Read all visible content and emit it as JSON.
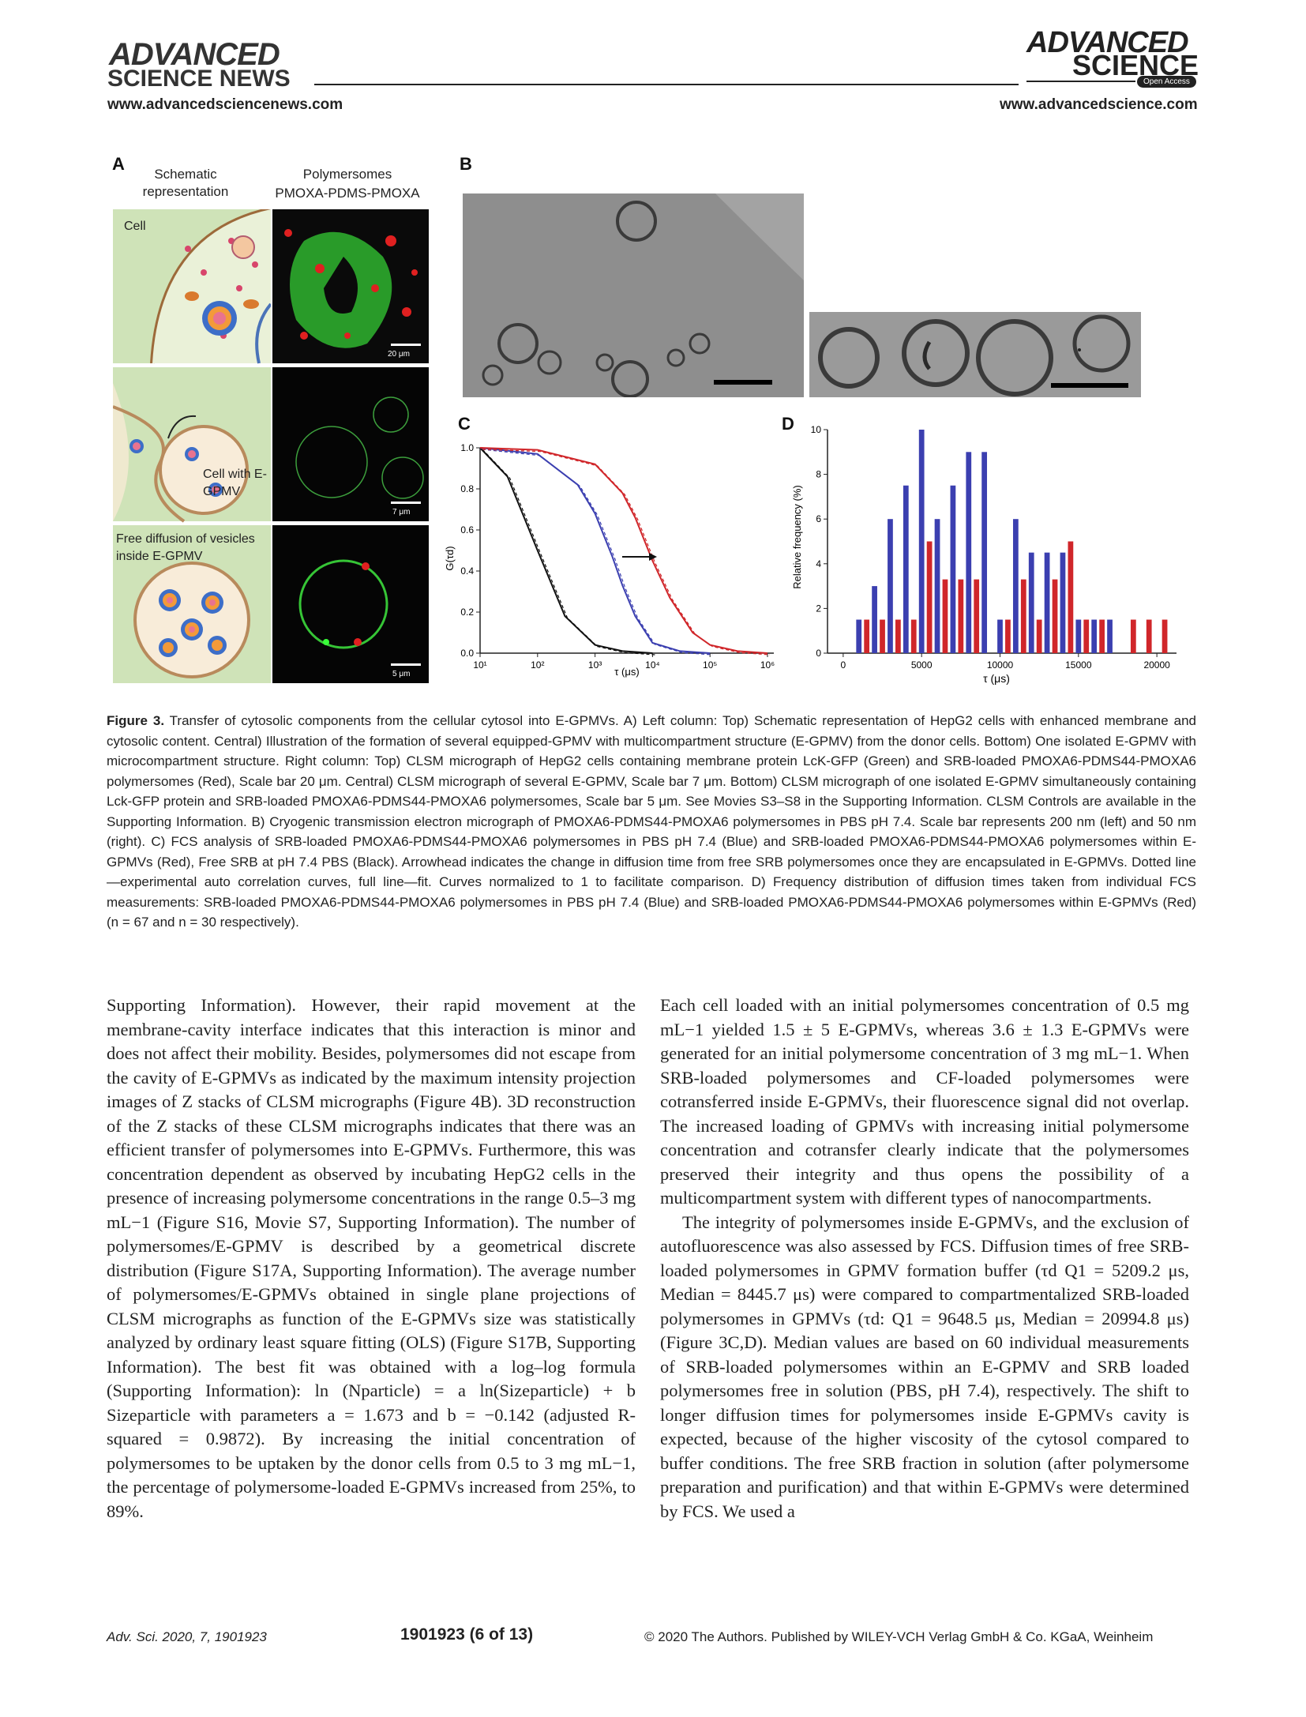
{
  "header": {
    "left_logo_line1": "ADVANCED",
    "left_logo_line2": "SCIENCE NEWS",
    "left_url": "www.advancedsciencenews.com",
    "right_logo_line1": "ADVANCED",
    "right_logo_line2": "SCIENCE",
    "right_badge": "Open Access",
    "right_url": "www.advancedscience.com"
  },
  "figure": {
    "panel_a": {
      "letter": "A",
      "col1_header": "Schematic representation",
      "col2_header_line1": "Polymersomes",
      "col2_header_line2": "PMOXA-PDMS-PMOXA",
      "row1_label": "Cell",
      "row2_label": "Cell with E-GPMV",
      "row3_label": "Free diffusion of vesicles inside E-GPMV",
      "scale1": "20 μm",
      "scale2": "7 μm",
      "scale3": "5 μm"
    },
    "panel_b": {
      "letter": "B"
    },
    "panel_c": {
      "letter": "C",
      "y_label": "G(τd)",
      "x_label": "τ (μs)",
      "y_ticks": [
        "1.0",
        "0.8",
        "0.6",
        "0.4",
        "0.2",
        "0.0"
      ],
      "x_ticks": [
        "10¹",
        "10²",
        "10³",
        "10⁴",
        "10⁵",
        "10⁶"
      ]
    },
    "panel_d": {
      "letter": "D",
      "y_label": "Relative frequency (%)",
      "x_label": "τ (μs)",
      "y_ticks": [
        "10",
        "8",
        "6",
        "4",
        "2",
        "0"
      ],
      "x_ticks": [
        "0",
        "5000",
        "10000",
        "15000",
        "20000"
      ]
    }
  },
  "chart_data": [
    {
      "type": "line",
      "panel": "C",
      "xscale": "log",
      "xlim": [
        10,
        1000000
      ],
      "ylim": [
        0,
        1.0
      ],
      "xlabel": "τ (μs)",
      "ylabel": "G(τd)",
      "series": [
        {
          "color": "#111111",
          "x": [
            10,
            30,
            100,
            300,
            1000,
            3000,
            10000
          ],
          "y": [
            1.0,
            0.86,
            0.5,
            0.18,
            0.04,
            0.01,
            0.0
          ]
        },
        {
          "color": "#3b3fb0",
          "x": [
            10,
            100,
            500,
            1000,
            2000,
            3000,
            5000,
            10000,
            30000,
            100000
          ],
          "y": [
            1.0,
            0.97,
            0.82,
            0.68,
            0.47,
            0.33,
            0.18,
            0.05,
            0.01,
            0.0
          ]
        },
        {
          "color": "#d0262a",
          "x": [
            10,
            100,
            1000,
            3000,
            5000,
            10000,
            20000,
            50000,
            100000,
            300000,
            1000000
          ],
          "y": [
            1.0,
            0.99,
            0.92,
            0.78,
            0.66,
            0.45,
            0.27,
            0.1,
            0.04,
            0.01,
            0.0
          ]
        }
      ]
    },
    {
      "type": "bar",
      "panel": "D",
      "xlabel": "τ (μs)",
      "ylabel": "Relative frequency (%)",
      "xlim": [
        -1000,
        21000
      ],
      "ylim": [
        0,
        10
      ],
      "bin_width_data": 500,
      "series": [
        {
          "color": "#3b3fb0",
          "x": [
            1000,
            2000,
            3000,
            4000,
            5000,
            6000,
            7000,
            8000,
            9000,
            10000,
            11000,
            12000,
            13000,
            14000,
            15000,
            16000,
            17000
          ],
          "values": [
            1.5,
            3.0,
            6.0,
            7.5,
            10.0,
            6.0,
            7.5,
            9.0,
            9.0,
            1.5,
            6.0,
            4.5,
            4.5,
            4.5,
            1.5,
            1.5,
            1.5
          ]
        },
        {
          "color": "#d0262a",
          "x": [
            1500,
            2500,
            3500,
            4500,
            5500,
            6500,
            7500,
            8500,
            10500,
            11500,
            12500,
            13500,
            14500,
            15500,
            16500,
            18500,
            19500,
            20500
          ],
          "values": [
            1.5,
            1.5,
            1.5,
            1.5,
            5.0,
            3.3,
            3.3,
            3.3,
            1.5,
            3.3,
            1.5,
            3.3,
            5.0,
            1.5,
            1.5,
            1.5,
            1.5,
            1.5
          ]
        }
      ]
    }
  ],
  "caption": {
    "label": "Figure 3.",
    "text": "Transfer of cytosolic components from the cellular cytosol into E-GPMVs. A) Left column: Top) Schematic representation of HepG2 cells with enhanced membrane and cytosolic content. Central) Illustration of the formation of several equipped-GPMV with multicompartment structure (E-GPMV) from the donor cells. Bottom) One isolated E-GPMV with microcompartment structure. Right column: Top) CLSM micrograph of HepG2 cells containing membrane protein LcK-GFP (Green) and SRB-loaded PMOXA6-PDMS44-PMOXA6 polymersomes (Red), Scale bar 20 μm. Central) CLSM micrograph of several E-GPMV, Scale bar 7 μm. Bottom) CLSM micrograph of one isolated E-GPMV simultaneously containing Lck-GFP protein and SRB-loaded PMOXA6-PDMS44-PMOXA6 polymersomes, Scale bar 5 μm. See Movies S3–S8 in the Supporting Information. CLSM Controls are available in the Supporting Information. B) Cryogenic transmission electron micrograph of PMOXA6-PDMS44-PMOXA6 polymersomes in PBS pH 7.4. Scale bar represents 200 nm (left) and 50 nm (right). C) FCS analysis of SRB-loaded PMOXA6-PDMS44-PMOXA6 polymersomes in PBS pH 7.4 (Blue) and SRB-loaded PMOXA6-PDMS44-PMOXA6 polymersomes within E-GPMVs (Red), Free SRB at pH 7.4 PBS (Black). Arrowhead indicates the change in diffusion time from free SRB polymersomes once they are encapsulated in E-GPMVs. Dotted line—experimental auto correlation curves, full line—fit. Curves normalized to 1 to facilitate comparison. D) Frequency distribution of diffusion times taken from individual FCS measurements: SRB-loaded PMOXA6-PDMS44-PMOXA6 polymersomes in PBS pH 7.4 (Blue) and SRB-loaded PMOXA6-PDMS44-PMOXA6 polymersomes within E-GPMVs (Red) (n = 67 and n = 30 respectively)."
  },
  "body": {
    "left_column": "Supporting Information). However, their rapid movement at the membrane-cavity interface indicates that this interaction is minor and does not affect their mobility. Besides, polymersomes did not escape from the cavity of E-GPMVs as indicated by the maximum intensity projection images of Z stacks of CLSM micrographs (Figure 4B). 3D reconstruction of the Z stacks of these CLSM micrographs indicates that there was an efficient transfer of polymersomes into E-GPMVs. Furthermore, this was concentration dependent as observed by incubating HepG2 cells in the presence of increasing polymersome concentrations in the range 0.5–3 mg mL−1 (Figure S16, Movie S7, Supporting Information). The number of polymersomes/E-GPMV is described by a geometrical discrete distribution (Figure S17A, Supporting Information). The average number of polymersomes/E-GPMVs obtained in single plane projections of CLSM micrographs as function of the E-GPMVs size was statistically analyzed by ordinary least square fitting (OLS) (Figure S17B, Supporting Information). The best fit was obtained with a log–log formula (Supporting Information): ln (Nparticle) = a ln(Sizeparticle) + b Sizeparticle with parameters a = 1.673 and b = −0.142 (adjusted R-squared = 0.9872). By increasing the initial concentration of polymersomes to be uptaken by the donor cells from 0.5 to 3 mg mL−1, the percentage of polymersome-loaded E-GPMVs increased from 25%, to 89%.",
    "right_para1": "Each cell loaded with an initial polymersomes concentration of 0.5 mg mL−1 yielded 1.5 ± 5 E-GPMVs, whereas 3.6 ± 1.3 E-GPMVs were generated for an initial polymersome concentration of 3 mg mL−1. When SRB-loaded polymersomes and CF-loaded polymersomes were cotransferred inside E-GPMVs, their fluorescence signal did not overlap. The increased loading of GPMVs with increasing initial polymersome concentration and cotransfer clearly indicate that the polymersomes preserved their integrity and thus opens the possibility of a multicompartment system with different types of nanocompartments.",
    "right_para2": "The integrity of polymersomes inside E-GPMVs, and the exclusion of autofluorescence was also assessed by FCS. Diffusion times of free SRB-loaded polymersomes in GPMV formation buffer (τd Q1 = 5209.2 μs, Median = 8445.7 μs) were compared to compartmentalized SRB-loaded polymersomes in GPMVs (τd: Q1 = 9648.5 μs, Median = 20994.8 μs) (Figure 3C,D). Median values are based on 60 individual measurements of SRB-loaded polymersomes within an E-GPMV and SRB loaded polymersomes free in solution (PBS, pH 7.4), respectively. The shift to longer diffusion times for polymersomes inside E-GPMVs cavity is expected, because of the higher viscosity of the cytosol compared to buffer conditions. The free SRB fraction in solution (after polymersome preparation and purification) and that within E-GPMVs were determined by FCS. We used a"
  },
  "footer": {
    "journal": "Adv. Sci. 2020, 7, 1901923",
    "page": "1901923 (6 of 13)",
    "copyright": "© 2020 The Authors. Published by WILEY-VCH Verlag GmbH & Co. KGaA, Weinheim"
  }
}
